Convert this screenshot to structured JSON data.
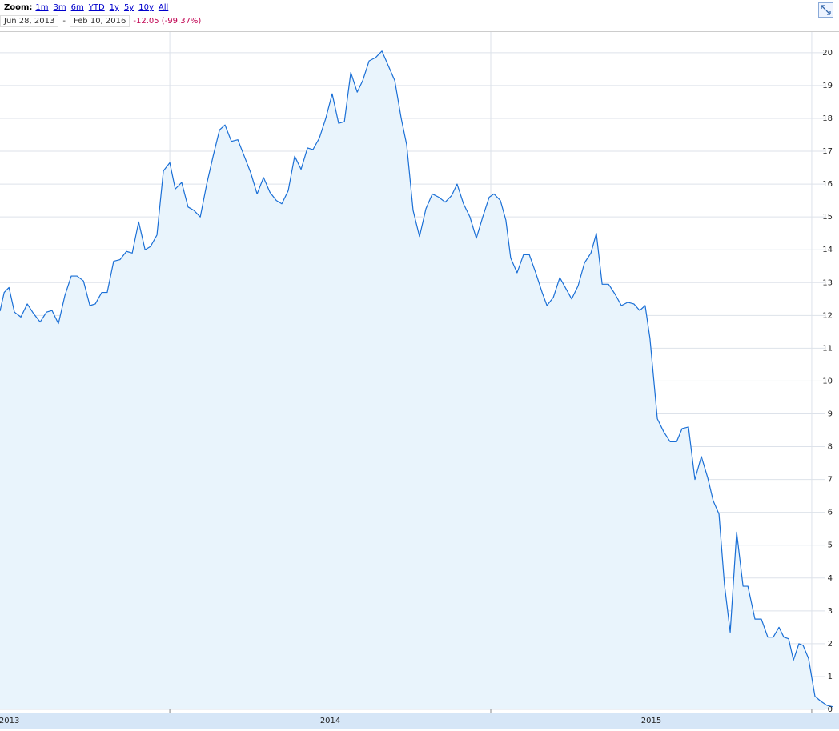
{
  "toolbar": {
    "zoom_label": "Zoom:",
    "zoom_options": [
      "1m",
      "3m",
      "6m",
      "YTD",
      "1y",
      "5y",
      "10y",
      "All"
    ],
    "start_date": "Jun 28, 2013",
    "separator": "-",
    "end_date": "Feb 10, 2016",
    "change": "-12.05 (-99.37%)"
  },
  "chart_data": {
    "type": "area",
    "color": "#1a6fd6",
    "fill_color": "#e9f4fc",
    "grid": true,
    "x": [
      2013.471,
      2013.484,
      2013.499,
      2013.516,
      2013.536,
      2013.556,
      2013.576,
      2013.596,
      2013.616,
      2013.633,
      2013.653,
      2013.673,
      2013.693,
      2013.711,
      2013.731,
      2013.751,
      2013.768,
      2013.788,
      2013.805,
      2013.825,
      2013.845,
      2013.865,
      2013.883,
      2013.903,
      2013.923,
      2013.94,
      2013.96,
      2013.98,
      2014.0,
      2014.017,
      2014.037,
      2014.057,
      2014.075,
      2014.095,
      2014.115,
      2014.135,
      2014.155,
      2014.172,
      2014.192,
      2014.212,
      2014.232,
      2014.252,
      2014.272,
      2014.292,
      2014.312,
      2014.332,
      2014.349,
      2014.369,
      2014.389,
      2014.409,
      2014.429,
      2014.446,
      2014.466,
      2014.486,
      2014.506,
      2014.526,
      2014.544,
      2014.564,
      2014.584,
      2014.601,
      2014.621,
      2014.641,
      2014.661,
      2014.681,
      2014.701,
      2014.721,
      2014.738,
      2014.758,
      2014.778,
      2014.798,
      2014.818,
      2014.838,
      2014.858,
      2014.878,
      2014.895,
      2014.915,
      2014.935,
      2014.955,
      2014.975,
      2014.995,
      2015.01,
      2015.03,
      2015.047,
      2015.062,
      2015.082,
      2015.102,
      2015.12,
      2015.14,
      2015.16,
      2015.175,
      2015.195,
      2015.215,
      2015.235,
      2015.252,
      2015.272,
      2015.292,
      2015.312,
      2015.329,
      2015.347,
      2015.367,
      2015.387,
      2015.407,
      2015.427,
      2015.446,
      2015.464,
      2015.481,
      2015.496,
      2015.519,
      2015.539,
      2015.559,
      2015.579,
      2015.596,
      2015.616,
      2015.636,
      2015.656,
      2015.676,
      2015.693,
      2015.711,
      2015.728,
      2015.746,
      2015.766,
      2015.786,
      2015.801,
      2015.823,
      2015.843,
      2015.863,
      2015.88,
      2015.898,
      2015.913,
      2015.928,
      2015.943,
      2015.96,
      2015.973,
      2015.99,
      2016.01,
      2016.028,
      2016.048,
      2016.065
    ],
    "values": [
      12.13,
      12.7,
      12.85,
      12.1,
      11.95,
      12.35,
      12.05,
      11.8,
      12.1,
      12.15,
      11.75,
      12.6,
      13.2,
      13.2,
      13.05,
      12.3,
      12.35,
      12.7,
      12.7,
      13.65,
      13.7,
      13.95,
      13.9,
      14.85,
      14.0,
      14.1,
      14.45,
      16.4,
      16.65,
      15.85,
      16.05,
      15.3,
      15.2,
      15.0,
      16.0,
      16.85,
      17.65,
      17.8,
      17.3,
      17.35,
      16.85,
      16.35,
      15.7,
      16.2,
      15.75,
      15.5,
      15.4,
      15.8,
      16.85,
      16.45,
      17.1,
      17.05,
      17.4,
      18.0,
      18.75,
      17.85,
      17.9,
      19.4,
      18.8,
      19.15,
      19.75,
      19.85,
      20.05,
      19.6,
      19.15,
      18.0,
      17.2,
      15.2,
      14.4,
      15.25,
      15.7,
      15.6,
      15.45,
      15.65,
      16.0,
      15.4,
      15.0,
      14.35,
      15.0,
      15.6,
      15.7,
      15.5,
      14.9,
      13.75,
      13.3,
      13.85,
      13.85,
      13.3,
      12.7,
      12.3,
      12.55,
      13.15,
      12.8,
      12.5,
      12.9,
      13.6,
      13.9,
      14.5,
      12.95,
      12.95,
      12.65,
      12.3,
      12.4,
      12.35,
      12.15,
      12.3,
      11.3,
      8.85,
      8.45,
      8.15,
      8.15,
      8.55,
      8.6,
      7.0,
      7.7,
      7.05,
      6.35,
      5.95,
      3.8,
      2.35,
      5.4,
      3.75,
      3.75,
      2.75,
      2.75,
      2.2,
      2.2,
      2.5,
      2.2,
      2.15,
      1.5,
      2.0,
      1.95,
      1.55,
      0.4,
      0.25,
      0.12,
      0.08
    ],
    "xlim": [
      2013.471,
      2016.065
    ],
    "xticks": [
      {
        "value": 2013.5,
        "label": "2013"
      },
      {
        "value": 2014.5,
        "label": "2014"
      },
      {
        "value": 2015.5,
        "label": "2015"
      }
    ],
    "x_grid": [
      2014,
      2015,
      2016
    ],
    "ylim": [
      0,
      20.63
    ],
    "yticks": [
      0,
      1,
      2,
      3,
      4,
      5,
      6,
      7,
      8,
      9,
      10,
      11,
      12,
      13,
      14,
      15,
      16,
      17,
      18,
      19,
      20
    ]
  }
}
